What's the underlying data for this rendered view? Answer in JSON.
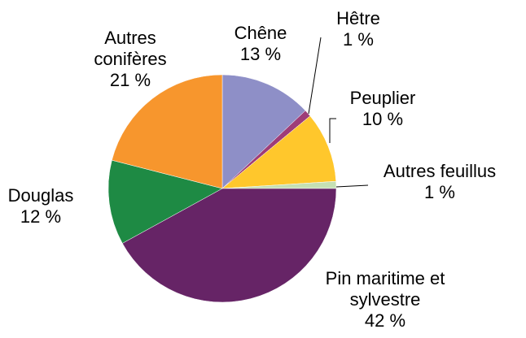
{
  "chart_data": {
    "type": "pie",
    "categories": [
      "Chêne",
      "Hêtre",
      "Peuplier",
      "Autres feuillus",
      "Pin maritime et sylvestre",
      "Douglas",
      "Autres conifères"
    ],
    "values": [
      13,
      1,
      10,
      1,
      42,
      12,
      21
    ],
    "value_labels": [
      "13 %",
      "1 %",
      "10 %",
      "1 %",
      "42 %",
      "12 %",
      "21 %"
    ],
    "colors": [
      "#8e8fc7",
      "#9e3d78",
      "#ffc72c",
      "#c5e0b4",
      "#662466",
      "#1e8a44",
      "#f7962d"
    ]
  }
}
